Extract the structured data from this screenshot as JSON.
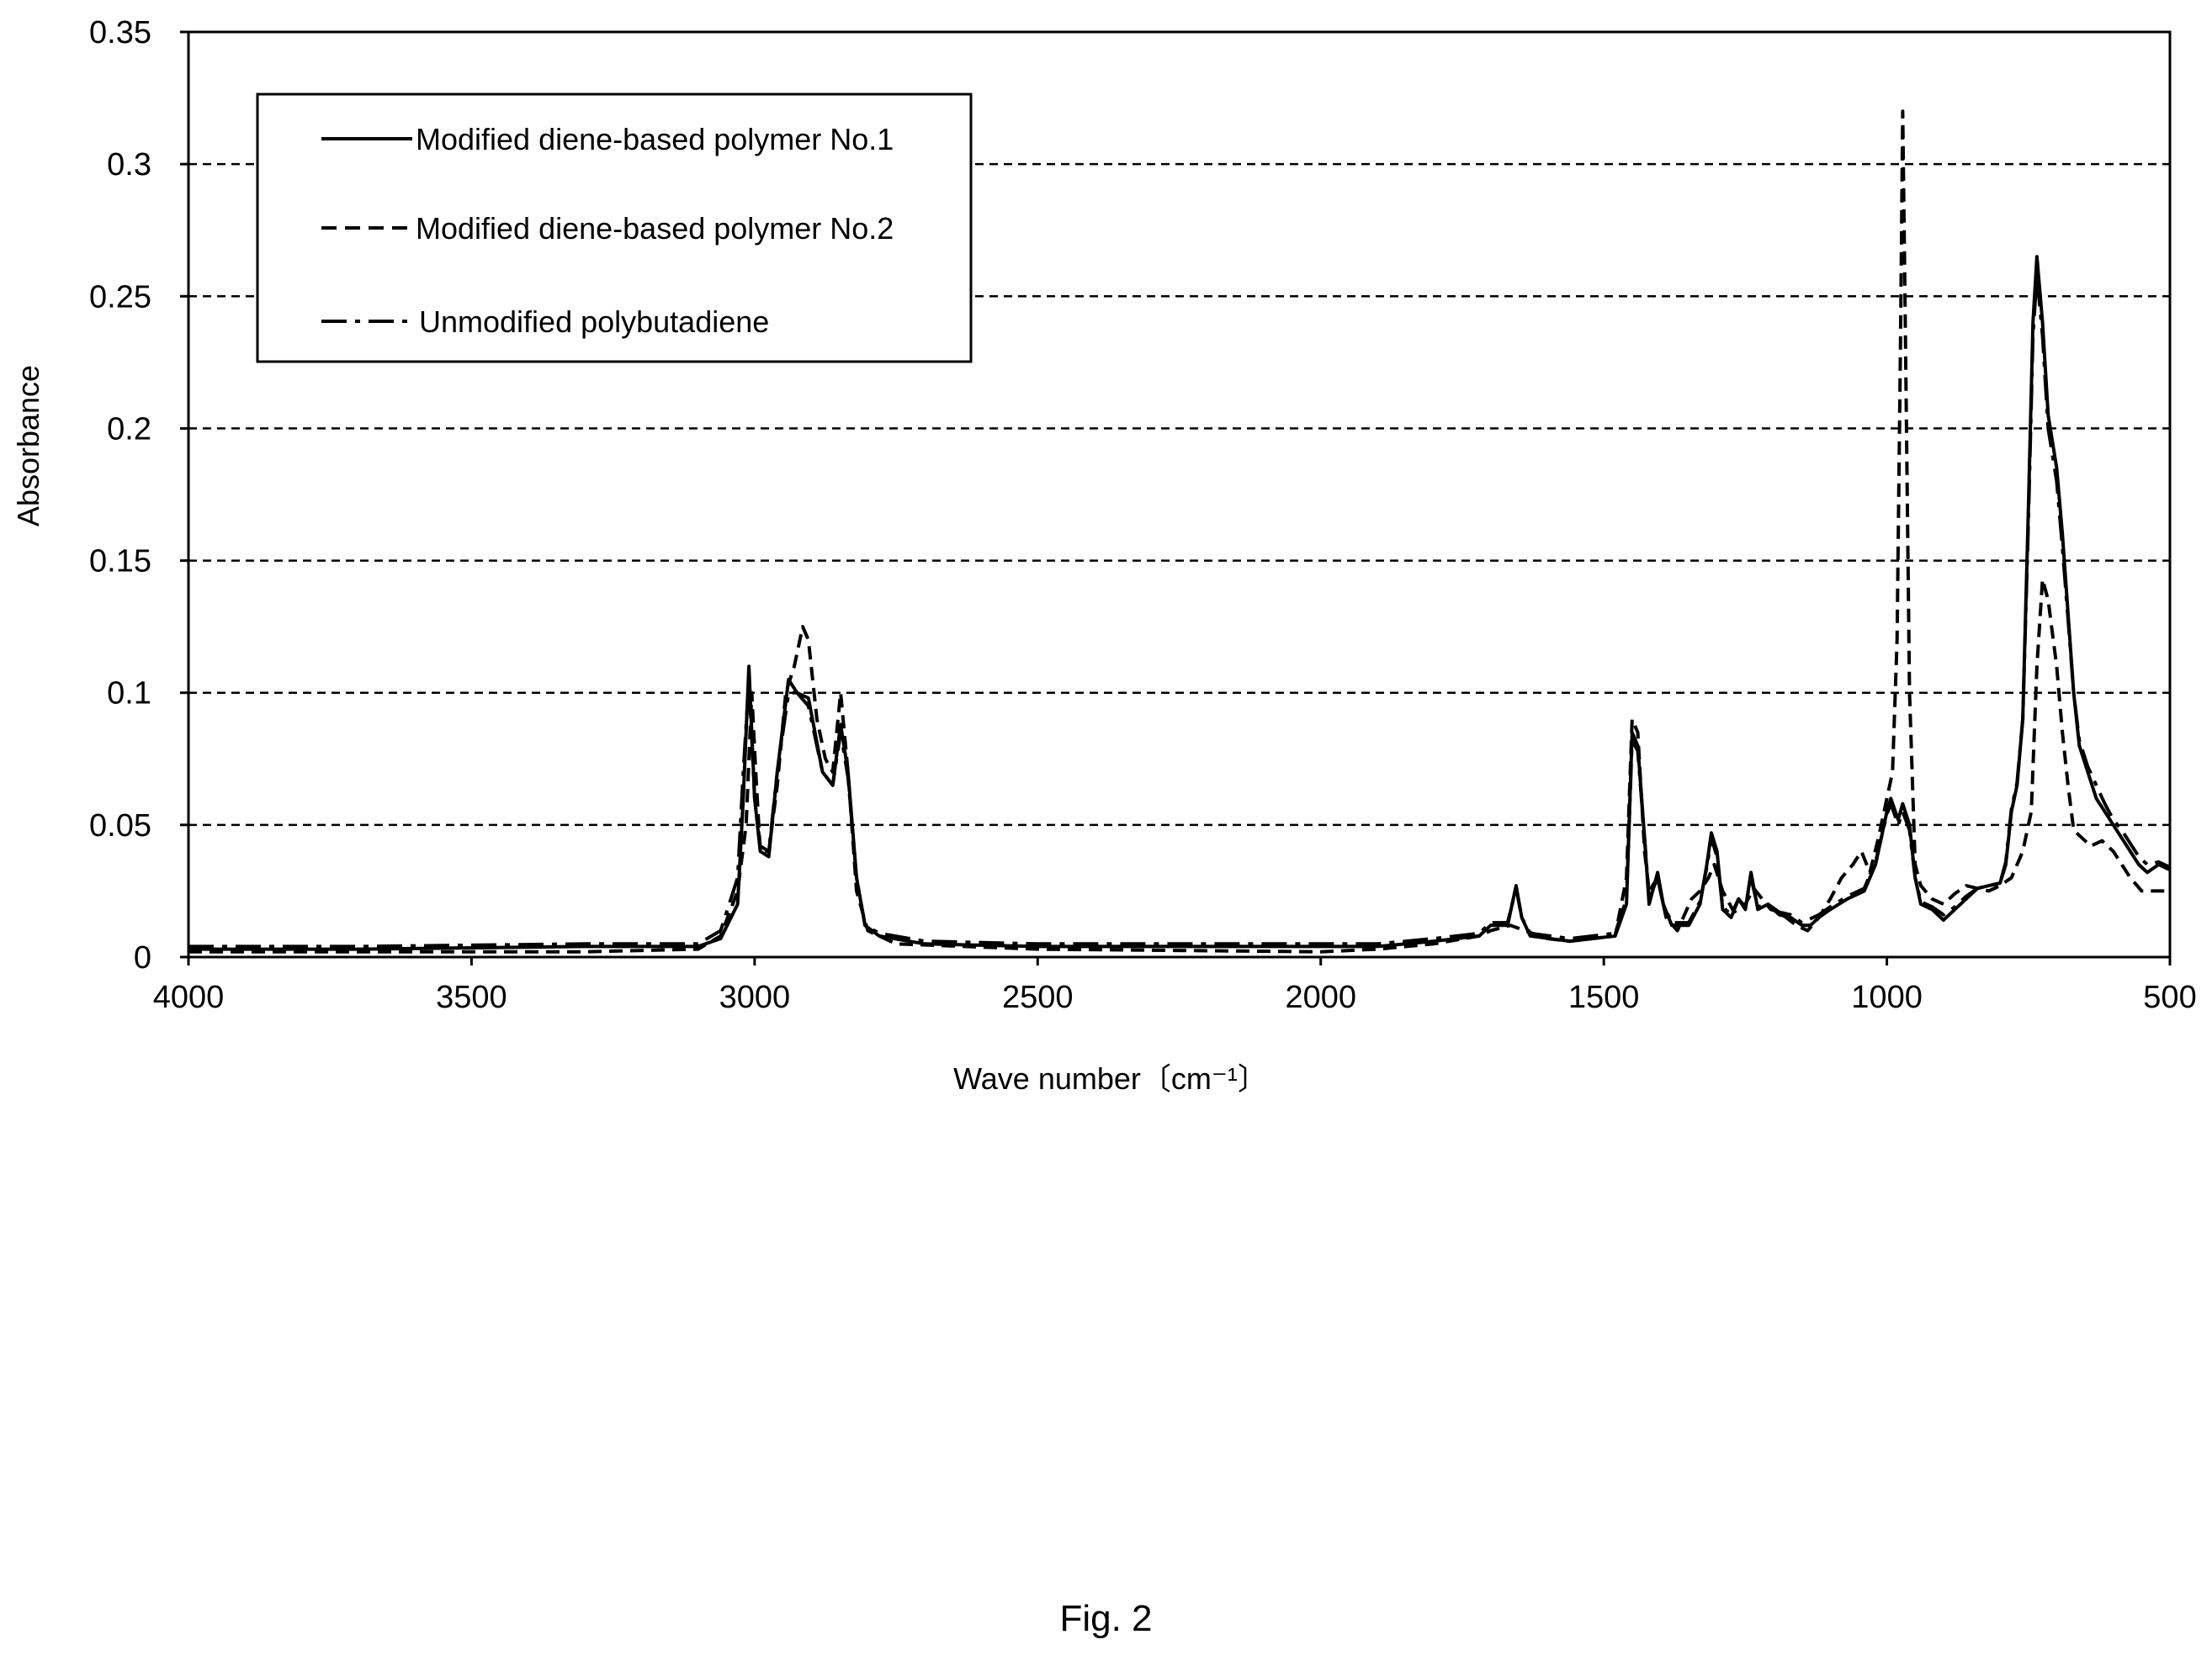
{
  "figure": {
    "caption": "Fig. 2"
  },
  "chart_data": {
    "type": "line",
    "xlabel": "Wave number〔cm⁻¹〕",
    "ylabel": "Absorbance",
    "xlim": [
      4000,
      500
    ],
    "ylim": [
      0,
      0.35
    ],
    "x_reversed": true,
    "grid": "horizontal-dashed",
    "xticks": [
      4000,
      3500,
      3000,
      2500,
      2000,
      1500,
      1000,
      500
    ],
    "xtick_labels": [
      "4000",
      "3500",
      "3000",
      "2500",
      "2000",
      "1500",
      "1000",
      "500"
    ],
    "yticks": [
      0,
      0.05,
      0.1,
      0.15,
      0.2,
      0.25,
      0.3,
      0.35
    ],
    "ytick_labels": [
      "0",
      "0.05",
      "0.1",
      "0.15",
      "0.2",
      "0.25",
      "0.3",
      "0.35"
    ],
    "legend_position": "top-left",
    "colors": {
      "line": "#000000",
      "grid": "#000000"
    },
    "series": [
      {
        "name": "Modified diene-based polymer No.1",
        "style": "solid",
        "points": [
          [
            4000,
            0.003
          ],
          [
            3700,
            0.003
          ],
          [
            3300,
            0.004
          ],
          [
            3100,
            0.004
          ],
          [
            3060,
            0.007
          ],
          [
            3030,
            0.02
          ],
          [
            3020,
            0.06
          ],
          [
            3010,
            0.11
          ],
          [
            3000,
            0.06
          ],
          [
            2990,
            0.04
          ],
          [
            2975,
            0.038
          ],
          [
            2960,
            0.07
          ],
          [
            2940,
            0.105
          ],
          [
            2925,
            0.1
          ],
          [
            2905,
            0.098
          ],
          [
            2880,
            0.07
          ],
          [
            2862,
            0.065
          ],
          [
            2848,
            0.088
          ],
          [
            2835,
            0.07
          ],
          [
            2820,
            0.03
          ],
          [
            2805,
            0.012
          ],
          [
            2780,
            0.008
          ],
          [
            2700,
            0.005
          ],
          [
            2500,
            0.004
          ],
          [
            2000,
            0.004
          ],
          [
            1900,
            0.004
          ],
          [
            1800,
            0.006
          ],
          [
            1720,
            0.008
          ],
          [
            1700,
            0.012
          ],
          [
            1670,
            0.012
          ],
          [
            1655,
            0.027
          ],
          [
            1645,
            0.015
          ],
          [
            1630,
            0.008
          ],
          [
            1560,
            0.006
          ],
          [
            1480,
            0.008
          ],
          [
            1460,
            0.02
          ],
          [
            1450,
            0.085
          ],
          [
            1440,
            0.08
          ],
          [
            1428,
            0.045
          ],
          [
            1420,
            0.02
          ],
          [
            1405,
            0.032
          ],
          [
            1395,
            0.02
          ],
          [
            1380,
            0.012
          ],
          [
            1350,
            0.012
          ],
          [
            1330,
            0.02
          ],
          [
            1318,
            0.035
          ],
          [
            1310,
            0.047
          ],
          [
            1300,
            0.04
          ],
          [
            1290,
            0.018
          ],
          [
            1275,
            0.015
          ],
          [
            1262,
            0.022
          ],
          [
            1250,
            0.018
          ],
          [
            1240,
            0.032
          ],
          [
            1228,
            0.018
          ],
          [
            1210,
            0.02
          ],
          [
            1190,
            0.016
          ],
          [
            1170,
            0.015
          ],
          [
            1150,
            0.012
          ],
          [
            1135,
            0.012
          ],
          [
            1120,
            0.015
          ],
          [
            1100,
            0.018
          ],
          [
            1070,
            0.022
          ],
          [
            1040,
            0.025
          ],
          [
            1020,
            0.035
          ],
          [
            1000,
            0.055
          ],
          [
            993,
            0.06
          ],
          [
            980,
            0.052
          ],
          [
            972,
            0.058
          ],
          [
            960,
            0.05
          ],
          [
            950,
            0.03
          ],
          [
            940,
            0.02
          ],
          [
            920,
            0.018
          ],
          [
            900,
            0.014
          ],
          [
            880,
            0.018
          ],
          [
            860,
            0.022
          ],
          [
            840,
            0.026
          ],
          [
            820,
            0.027
          ],
          [
            800,
            0.028
          ],
          [
            790,
            0.035
          ],
          [
            780,
            0.055
          ],
          [
            770,
            0.065
          ],
          [
            760,
            0.09
          ],
          [
            750,
            0.17
          ],
          [
            742,
            0.24
          ],
          [
            735,
            0.265
          ],
          [
            725,
            0.24
          ],
          [
            715,
            0.205
          ],
          [
            700,
            0.185
          ],
          [
            690,
            0.16
          ],
          [
            680,
            0.13
          ],
          [
            670,
            0.1
          ],
          [
            660,
            0.08
          ],
          [
            645,
            0.07
          ],
          [
            630,
            0.06
          ],
          [
            615,
            0.055
          ],
          [
            600,
            0.05
          ],
          [
            585,
            0.045
          ],
          [
            570,
            0.04
          ],
          [
            555,
            0.035
          ],
          [
            540,
            0.032
          ],
          [
            520,
            0.035
          ],
          [
            500,
            0.033
          ]
        ]
      },
      {
        "name": "Modified diene-based polymer No.2",
        "style": "dashed",
        "points": [
          [
            4000,
            0.002
          ],
          [
            3700,
            0.002
          ],
          [
            3300,
            0.002
          ],
          [
            3100,
            0.003
          ],
          [
            3060,
            0.008
          ],
          [
            3030,
            0.025
          ],
          [
            3015,
            0.05
          ],
          [
            3005,
            0.1
          ],
          [
            2998,
            0.07
          ],
          [
            2990,
            0.04
          ],
          [
            2975,
            0.04
          ],
          [
            2960,
            0.065
          ],
          [
            2945,
            0.1
          ],
          [
            2930,
            0.11
          ],
          [
            2915,
            0.125
          ],
          [
            2905,
            0.12
          ],
          [
            2890,
            0.09
          ],
          [
            2875,
            0.075
          ],
          [
            2862,
            0.07
          ],
          [
            2848,
            0.1
          ],
          [
            2835,
            0.07
          ],
          [
            2820,
            0.025
          ],
          [
            2800,
            0.01
          ],
          [
            2750,
            0.005
          ],
          [
            2500,
            0.003
          ],
          [
            2000,
            0.002
          ],
          [
            1900,
            0.003
          ],
          [
            1800,
            0.005
          ],
          [
            1720,
            0.008
          ],
          [
            1700,
            0.01
          ],
          [
            1665,
            0.012
          ],
          [
            1600,
            0.007
          ],
          [
            1560,
            0.006
          ],
          [
            1480,
            0.008
          ],
          [
            1460,
            0.03
          ],
          [
            1450,
            0.09
          ],
          [
            1440,
            0.085
          ],
          [
            1428,
            0.04
          ],
          [
            1420,
            0.025
          ],
          [
            1405,
            0.03
          ],
          [
            1390,
            0.015
          ],
          [
            1370,
            0.01
          ],
          [
            1345,
            0.022
          ],
          [
            1330,
            0.025
          ],
          [
            1315,
            0.03
          ],
          [
            1305,
            0.035
          ],
          [
            1290,
            0.025
          ],
          [
            1270,
            0.017
          ],
          [
            1250,
            0.02
          ],
          [
            1235,
            0.026
          ],
          [
            1220,
            0.022
          ],
          [
            1205,
            0.018
          ],
          [
            1190,
            0.017
          ],
          [
            1160,
            0.012
          ],
          [
            1140,
            0.01
          ],
          [
            1120,
            0.015
          ],
          [
            1100,
            0.022
          ],
          [
            1080,
            0.03
          ],
          [
            1060,
            0.035
          ],
          [
            1045,
            0.04
          ],
          [
            1030,
            0.032
          ],
          [
            1015,
            0.045
          ],
          [
            1000,
            0.06
          ],
          [
            990,
            0.07
          ],
          [
            982,
            0.12
          ],
          [
            976,
            0.23
          ],
          [
            972,
            0.32
          ],
          [
            968,
            0.25
          ],
          [
            960,
            0.1
          ],
          [
            950,
            0.035
          ],
          [
            940,
            0.027
          ],
          [
            920,
            0.022
          ],
          [
            900,
            0.02
          ],
          [
            880,
            0.024
          ],
          [
            860,
            0.027
          ],
          [
            840,
            0.026
          ],
          [
            820,
            0.025
          ],
          [
            800,
            0.027
          ],
          [
            780,
            0.03
          ],
          [
            760,
            0.04
          ],
          [
            745,
            0.055
          ],
          [
            735,
            0.11
          ],
          [
            725,
            0.143
          ],
          [
            715,
            0.135
          ],
          [
            700,
            0.11
          ],
          [
            690,
            0.085
          ],
          [
            680,
            0.065
          ],
          [
            670,
            0.048
          ],
          [
            655,
            0.045
          ],
          [
            640,
            0.042
          ],
          [
            620,
            0.044
          ],
          [
            600,
            0.04
          ],
          [
            585,
            0.035
          ],
          [
            570,
            0.03
          ],
          [
            550,
            0.025
          ],
          [
            520,
            0.025
          ],
          [
            500,
            0.025
          ]
        ]
      },
      {
        "name": "Unmodified polybutadiene",
        "style": "dashdot",
        "points": [
          [
            4000,
            0.004
          ],
          [
            3700,
            0.004
          ],
          [
            3300,
            0.005
          ],
          [
            3100,
            0.005
          ],
          [
            3060,
            0.01
          ],
          [
            3030,
            0.03
          ],
          [
            3020,
            0.07
          ],
          [
            3010,
            0.105
          ],
          [
            3000,
            0.06
          ],
          [
            2990,
            0.042
          ],
          [
            2975,
            0.04
          ],
          [
            2960,
            0.07
          ],
          [
            2940,
            0.1
          ],
          [
            2925,
            0.1
          ],
          [
            2905,
            0.095
          ],
          [
            2880,
            0.07
          ],
          [
            2862,
            0.065
          ],
          [
            2848,
            0.085
          ],
          [
            2835,
            0.068
          ],
          [
            2820,
            0.03
          ],
          [
            2805,
            0.012
          ],
          [
            2780,
            0.009
          ],
          [
            2700,
            0.006
          ],
          [
            2500,
            0.005
          ],
          [
            2000,
            0.005
          ],
          [
            1900,
            0.005
          ],
          [
            1800,
            0.007
          ],
          [
            1720,
            0.009
          ],
          [
            1700,
            0.013
          ],
          [
            1670,
            0.013
          ],
          [
            1655,
            0.026
          ],
          [
            1645,
            0.015
          ],
          [
            1630,
            0.009
          ],
          [
            1560,
            0.007
          ],
          [
            1480,
            0.009
          ],
          [
            1460,
            0.022
          ],
          [
            1450,
            0.082
          ],
          [
            1440,
            0.078
          ],
          [
            1428,
            0.045
          ],
          [
            1420,
            0.022
          ],
          [
            1405,
            0.03
          ],
          [
            1395,
            0.02
          ],
          [
            1380,
            0.013
          ],
          [
            1350,
            0.013
          ],
          [
            1330,
            0.021
          ],
          [
            1318,
            0.034
          ],
          [
            1310,
            0.045
          ],
          [
            1300,
            0.038
          ],
          [
            1290,
            0.019
          ],
          [
            1275,
            0.016
          ],
          [
            1262,
            0.022
          ],
          [
            1250,
            0.019
          ],
          [
            1240,
            0.03
          ],
          [
            1228,
            0.019
          ],
          [
            1210,
            0.02
          ],
          [
            1190,
            0.017
          ],
          [
            1170,
            0.016
          ],
          [
            1150,
            0.013
          ],
          [
            1120,
            0.016
          ],
          [
            1100,
            0.019
          ],
          [
            1070,
            0.023
          ],
          [
            1040,
            0.026
          ],
          [
            1020,
            0.036
          ],
          [
            1000,
            0.054
          ],
          [
            993,
            0.058
          ],
          [
            980,
            0.05
          ],
          [
            972,
            0.055
          ],
          [
            960,
            0.048
          ],
          [
            950,
            0.03
          ],
          [
            940,
            0.021
          ],
          [
            920,
            0.019
          ],
          [
            900,
            0.016
          ],
          [
            880,
            0.019
          ],
          [
            860,
            0.023
          ],
          [
            840,
            0.026
          ],
          [
            820,
            0.027
          ],
          [
            800,
            0.028
          ],
          [
            790,
            0.036
          ],
          [
            780,
            0.056
          ],
          [
            770,
            0.066
          ],
          [
            760,
            0.09
          ],
          [
            750,
            0.165
          ],
          [
            742,
            0.235
          ],
          [
            735,
            0.258
          ],
          [
            725,
            0.235
          ],
          [
            715,
            0.2
          ],
          [
            700,
            0.18
          ],
          [
            690,
            0.155
          ],
          [
            680,
            0.128
          ],
          [
            670,
            0.1
          ],
          [
            660,
            0.082
          ],
          [
            645,
            0.072
          ],
          [
            630,
            0.065
          ],
          [
            615,
            0.058
          ],
          [
            600,
            0.052
          ],
          [
            585,
            0.048
          ],
          [
            570,
            0.043
          ],
          [
            555,
            0.038
          ],
          [
            540,
            0.035
          ],
          [
            520,
            0.036
          ],
          [
            500,
            0.034
          ]
        ]
      }
    ]
  }
}
